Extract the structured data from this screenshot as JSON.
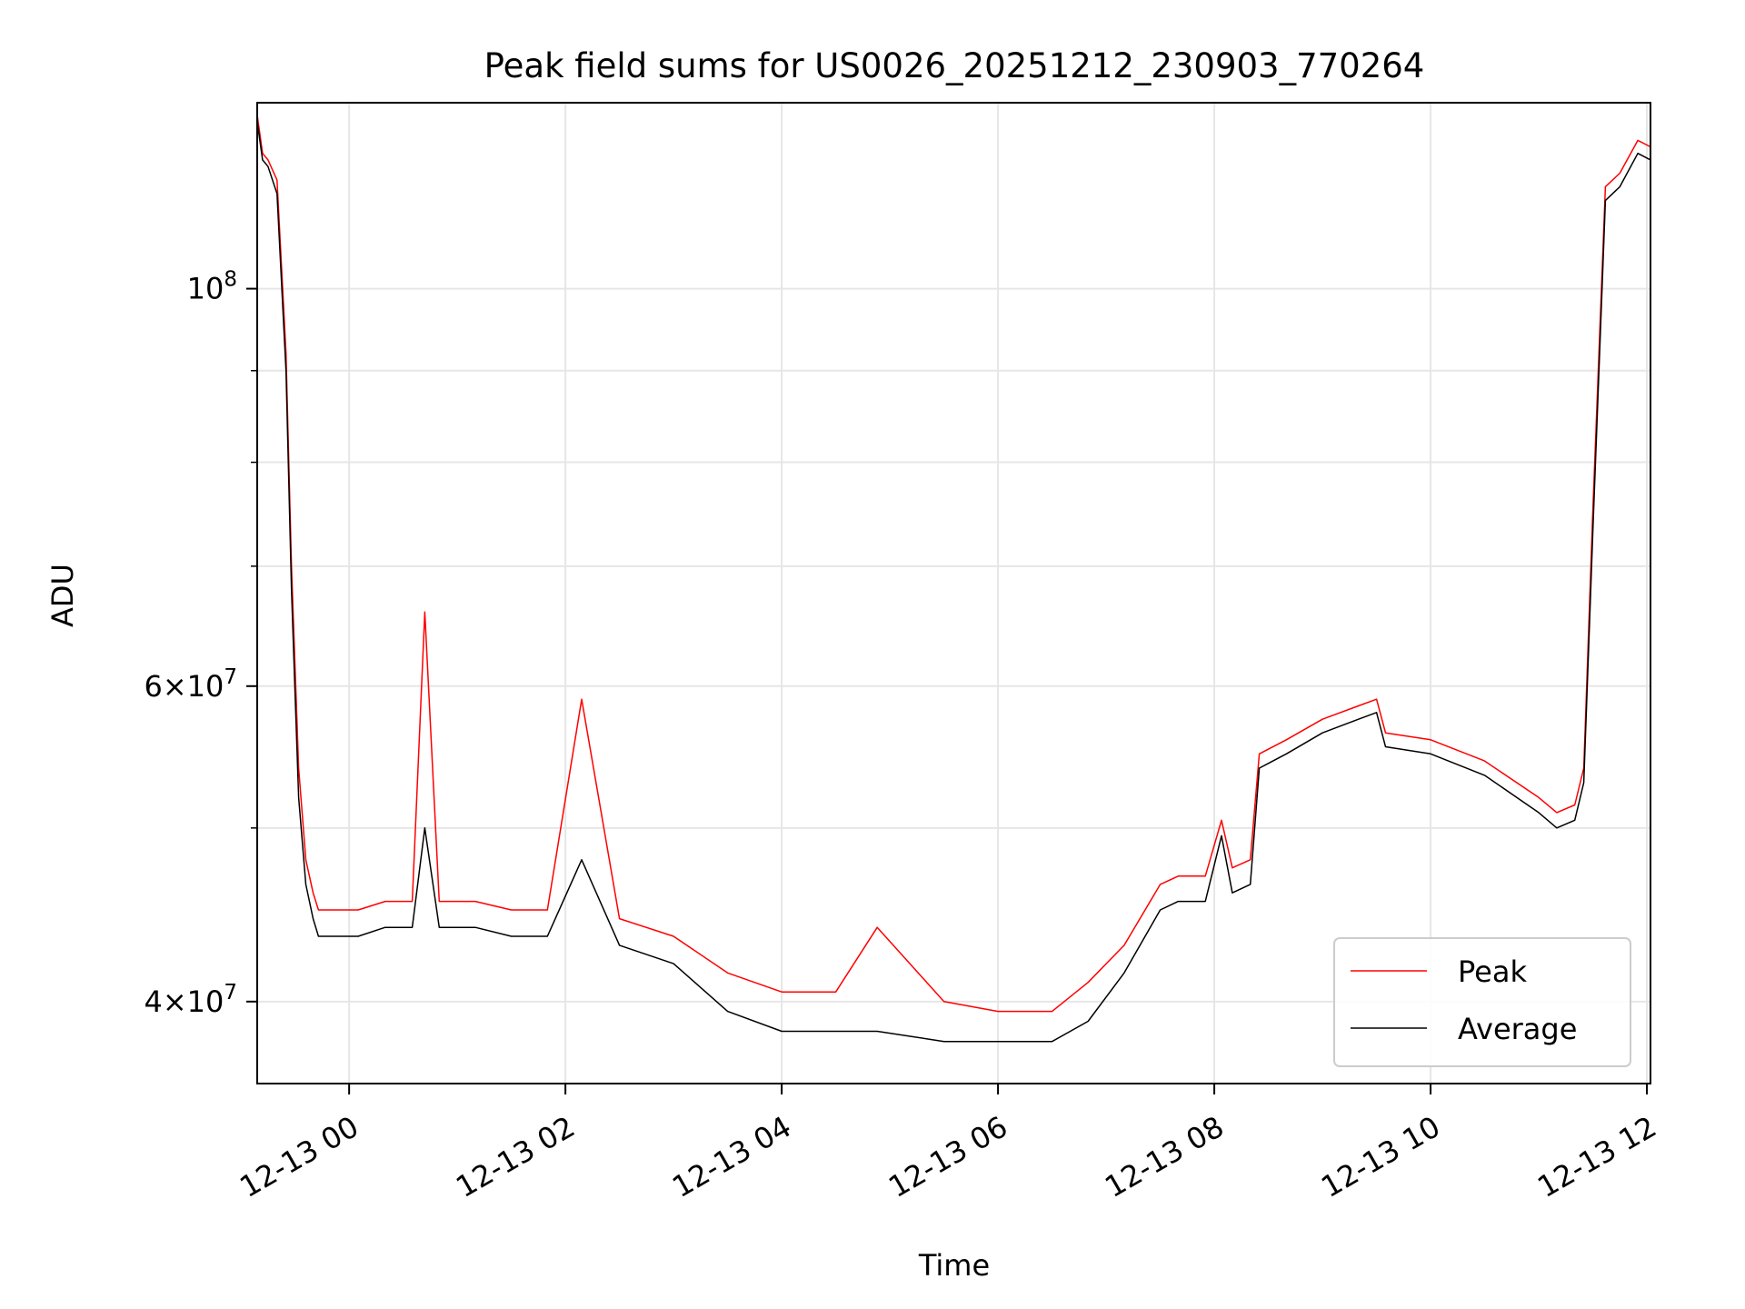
{
  "chart_data": {
    "type": "line",
    "title": "Peak field sums for US0026_20251212_230903_770264",
    "xlabel": "Time",
    "ylabel": "ADU",
    "yscale": "log",
    "grid": true,
    "legend_position": "lower-right",
    "xlim": [
      "2025-12-12 23:09",
      "2025-12-13 12:02"
    ],
    "ylim": [
      36000000,
      127000000
    ],
    "x_ticks": [
      {
        "value": "2025-12-13 00:00",
        "label": "12-13 00"
      },
      {
        "value": "2025-12-13 02:00",
        "label": "12-13 02"
      },
      {
        "value": "2025-12-13 04:00",
        "label": "12-13 04"
      },
      {
        "value": "2025-12-13 06:00",
        "label": "12-13 06"
      },
      {
        "value": "2025-12-13 08:00",
        "label": "12-13 08"
      },
      {
        "value": "2025-12-13 10:00",
        "label": "12-13 10"
      },
      {
        "value": "2025-12-13 12:00",
        "label": "12-13 12"
      }
    ],
    "y_ticks": [
      {
        "value": 40000000,
        "mantissa": "4",
        "exponent": "7"
      },
      {
        "value": 60000000,
        "mantissa": "6",
        "exponent": "7"
      },
      {
        "value": 100000000,
        "mantissa": "",
        "exponent": "8"
      }
    ],
    "y_minor_ticks": [
      50000000,
      70000000,
      80000000,
      90000000
    ],
    "series": [
      {
        "name": "Peak",
        "color": "#ff0000",
        "x": [
          "2025-12-12 23:09",
          "2025-12-12 23:12",
          "2025-12-12 23:15",
          "2025-12-12 23:20",
          "2025-12-12 23:25",
          "2025-12-12 23:28",
          "2025-12-12 23:32",
          "2025-12-12 23:36",
          "2025-12-12 23:40",
          "2025-12-12 23:43",
          "2025-12-12 23:46",
          "2025-12-12 23:50",
          "2025-12-12 23:55",
          "2025-12-13 00:05",
          "2025-12-13 00:20",
          "2025-12-13 00:35",
          "2025-12-13 00:42",
          "2025-12-13 00:50",
          "2025-12-13 01:10",
          "2025-12-13 01:30",
          "2025-12-13 01:50",
          "2025-12-13 02:09",
          "2025-12-13 02:30",
          "2025-12-13 03:00",
          "2025-12-13 03:30",
          "2025-12-13 04:00",
          "2025-12-13 04:30",
          "2025-12-13 04:53",
          "2025-12-13 05:30",
          "2025-12-13 06:00",
          "2025-12-13 06:30",
          "2025-12-13 06:50",
          "2025-12-13 07:10",
          "2025-12-13 07:30",
          "2025-12-13 07:40",
          "2025-12-13 07:55",
          "2025-12-13 08:04",
          "2025-12-13 08:10",
          "2025-12-13 08:20",
          "2025-12-13 08:25",
          "2025-12-13 08:40",
          "2025-12-13 09:00",
          "2025-12-13 09:20",
          "2025-12-13 09:30",
          "2025-12-13 09:35",
          "2025-12-13 10:00",
          "2025-12-13 10:30",
          "2025-12-13 11:00",
          "2025-12-13 11:10",
          "2025-12-13 11:20",
          "2025-12-13 11:25",
          "2025-12-13 11:30",
          "2025-12-13 11:37",
          "2025-12-13 11:45",
          "2025-12-13 11:55",
          "2025-12-13 12:02"
        ],
        "values": [
          125000000,
          119000000,
          118000000,
          115000000,
          92000000,
          70000000,
          54000000,
          48000000,
          46000000,
          45000000,
          45000000,
          45000000,
          45000000,
          45000000,
          45500000,
          45500000,
          66000000,
          45500000,
          45500000,
          45000000,
          45000000,
          59000000,
          44500000,
          43500000,
          41500000,
          40500000,
          40500000,
          44000000,
          40000000,
          39500000,
          39500000,
          41000000,
          43000000,
          46500000,
          47000000,
          47000000,
          50500000,
          47500000,
          48000000,
          55000000,
          56000000,
          57500000,
          58500000,
          59000000,
          56500000,
          56000000,
          54500000,
          52000000,
          51000000,
          51500000,
          54000000,
          75000000,
          114000000,
          116000000,
          121000000,
          120000000
        ]
      },
      {
        "name": "Average",
        "color": "#000000",
        "x": [
          "2025-12-12 23:09",
          "2025-12-12 23:12",
          "2025-12-12 23:15",
          "2025-12-12 23:20",
          "2025-12-12 23:25",
          "2025-12-12 23:28",
          "2025-12-12 23:32",
          "2025-12-12 23:36",
          "2025-12-12 23:40",
          "2025-12-12 23:43",
          "2025-12-12 23:46",
          "2025-12-12 23:50",
          "2025-12-12 23:55",
          "2025-12-13 00:05",
          "2025-12-13 00:20",
          "2025-12-13 00:35",
          "2025-12-13 00:42",
          "2025-12-13 00:50",
          "2025-12-13 01:10",
          "2025-12-13 01:30",
          "2025-12-13 01:50",
          "2025-12-13 02:09",
          "2025-12-13 02:30",
          "2025-12-13 03:00",
          "2025-12-13 03:30",
          "2025-12-13 04:00",
          "2025-12-13 04:30",
          "2025-12-13 04:53",
          "2025-12-13 05:30",
          "2025-12-13 06:00",
          "2025-12-13 06:30",
          "2025-12-13 06:50",
          "2025-12-13 07:10",
          "2025-12-13 07:30",
          "2025-12-13 07:40",
          "2025-12-13 07:55",
          "2025-12-13 08:04",
          "2025-12-13 08:10",
          "2025-12-13 08:20",
          "2025-12-13 08:25",
          "2025-12-13 08:40",
          "2025-12-13 09:00",
          "2025-12-13 09:20",
          "2025-12-13 09:30",
          "2025-12-13 09:35",
          "2025-12-13 10:00",
          "2025-12-13 10:30",
          "2025-12-13 11:00",
          "2025-12-13 11:10",
          "2025-12-13 11:20",
          "2025-12-13 11:25",
          "2025-12-13 11:30",
          "2025-12-13 11:37",
          "2025-12-13 11:45",
          "2025-12-13 11:55",
          "2025-12-13 12:02"
        ],
        "values": [
          124000000,
          118000000,
          117000000,
          113000000,
          90000000,
          68000000,
          52000000,
          46500000,
          44500000,
          43500000,
          43500000,
          43500000,
          43500000,
          43500000,
          44000000,
          44000000,
          50000000,
          44000000,
          44000000,
          43500000,
          43500000,
          48000000,
          43000000,
          42000000,
          39500000,
          38500000,
          38500000,
          38500000,
          38000000,
          38000000,
          38000000,
          39000000,
          41500000,
          45000000,
          45500000,
          45500000,
          49500000,
          46000000,
          46500000,
          54000000,
          55000000,
          56500000,
          57500000,
          58000000,
          55500000,
          55000000,
          53500000,
          51000000,
          50000000,
          50500000,
          53000000,
          73000000,
          112000000,
          114000000,
          119000000,
          118000000
        ]
      }
    ]
  }
}
